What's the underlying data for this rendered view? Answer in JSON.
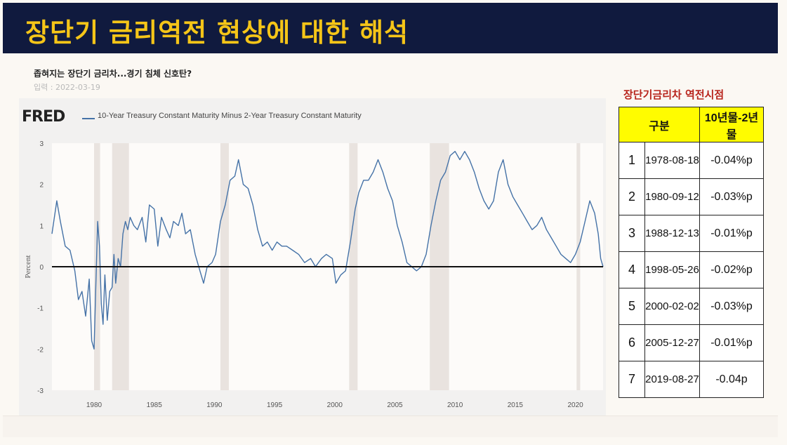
{
  "slide": {
    "title": "장단기 금리역전 현상에 대한 해석",
    "headline": "좁혀지는 장단기 금리차...경기 침체 신호탄?",
    "date_line": "입력 : 2022-03-19"
  },
  "chart_data": {
    "type": "line",
    "logo": "FRED",
    "legend": "10-Year Treasury Constant Maturity Minus 2-Year Treasury Constant Maturity",
    "ylabel": "Percent",
    "xlabel": "",
    "ylim": [
      -3,
      3
    ],
    "xlim": [
      1976.5,
      2022.3
    ],
    "y_ticks": [
      3,
      2,
      1,
      0,
      -1,
      -2,
      -3
    ],
    "x_ticks": [
      1980,
      1985,
      1990,
      1995,
      2000,
      2005,
      2010,
      2015,
      2020
    ],
    "recessions": [
      [
        1980.0,
        1980.5
      ],
      [
        1981.5,
        1982.9
      ],
      [
        1990.5,
        1991.2
      ],
      [
        2001.2,
        2001.9
      ],
      [
        2007.9,
        2009.5
      ],
      [
        2020.1,
        2020.4
      ]
    ],
    "series": [
      {
        "name": "10-Year Treasury Constant Maturity Minus 2-Year Treasury Constant Maturity",
        "color": "#4572a7",
        "x": [
          1976.5,
          1976.9,
          1977.2,
          1977.6,
          1978.0,
          1978.4,
          1978.7,
          1979.0,
          1979.3,
          1979.6,
          1979.8,
          1980.0,
          1980.15,
          1980.3,
          1980.45,
          1980.6,
          1980.75,
          1980.9,
          1981.1,
          1981.3,
          1981.5,
          1981.65,
          1981.8,
          1982.0,
          1982.2,
          1982.4,
          1982.6,
          1982.8,
          1983.0,
          1983.3,
          1983.6,
          1984.0,
          1984.3,
          1984.6,
          1985.0,
          1985.3,
          1985.6,
          1986.0,
          1986.3,
          1986.6,
          1987.0,
          1987.3,
          1987.6,
          1988.0,
          1988.4,
          1988.8,
          1989.1,
          1989.4,
          1989.8,
          1990.1,
          1990.5,
          1990.9,
          1991.3,
          1991.7,
          1992.0,
          1992.4,
          1992.8,
          1993.2,
          1993.6,
          1994.0,
          1994.4,
          1994.8,
          1995.2,
          1995.6,
          1996.0,
          1996.5,
          1997.0,
          1997.5,
          1998.0,
          1998.4,
          1998.9,
          1999.3,
          1999.8,
          2000.1,
          2000.5,
          2000.9,
          2001.3,
          2001.7,
          2002.0,
          2002.4,
          2002.8,
          2003.2,
          2003.6,
          2004.0,
          2004.4,
          2004.8,
          2005.2,
          2005.6,
          2006.0,
          2006.4,
          2006.8,
          2007.2,
          2007.6,
          2008.0,
          2008.4,
          2008.8,
          2009.2,
          2009.6,
          2010.0,
          2010.4,
          2010.8,
          2011.2,
          2011.6,
          2012.0,
          2012.4,
          2012.8,
          2013.2,
          2013.6,
          2014.0,
          2014.4,
          2014.8,
          2015.2,
          2015.6,
          2016.0,
          2016.4,
          2016.8,
          2017.2,
          2017.6,
          2018.0,
          2018.4,
          2018.8,
          2019.2,
          2019.6,
          2020.0,
          2020.4,
          2020.8,
          2021.2,
          2021.6,
          2021.9,
          2022.1,
          2022.3
        ],
        "y": [
          0.8,
          1.6,
          1.1,
          0.5,
          0.4,
          -0.1,
          -0.8,
          -0.6,
          -1.2,
          -0.3,
          -1.8,
          -2.0,
          -0.4,
          1.1,
          0.5,
          -0.9,
          -1.4,
          -0.2,
          -1.3,
          -0.6,
          -0.5,
          0.3,
          -0.4,
          0.2,
          0.0,
          0.8,
          1.1,
          0.9,
          1.2,
          1.0,
          0.9,
          1.2,
          0.6,
          1.5,
          1.4,
          0.5,
          1.2,
          0.9,
          0.7,
          1.1,
          1.0,
          1.3,
          0.8,
          0.9,
          0.3,
          -0.1,
          -0.4,
          0.0,
          0.1,
          0.3,
          1.1,
          1.5,
          2.1,
          2.2,
          2.6,
          2.0,
          1.9,
          1.5,
          0.9,
          0.5,
          0.6,
          0.4,
          0.6,
          0.5,
          0.5,
          0.4,
          0.3,
          0.1,
          0.2,
          0.0,
          0.2,
          0.3,
          0.2,
          -0.4,
          -0.2,
          -0.1,
          0.6,
          1.4,
          1.8,
          2.1,
          2.1,
          2.3,
          2.6,
          2.3,
          1.9,
          1.6,
          1.0,
          0.6,
          0.1,
          0.0,
          -0.1,
          0.0,
          0.3,
          1.0,
          1.6,
          2.1,
          2.3,
          2.7,
          2.8,
          2.6,
          2.8,
          2.6,
          2.3,
          1.9,
          1.6,
          1.4,
          1.6,
          2.3,
          2.6,
          2.0,
          1.7,
          1.5,
          1.3,
          1.1,
          0.9,
          1.0,
          1.2,
          0.9,
          0.7,
          0.5,
          0.3,
          0.2,
          0.1,
          0.3,
          0.6,
          1.1,
          1.6,
          1.3,
          0.8,
          0.2,
          0.0
        ]
      }
    ]
  },
  "side_table": {
    "title": "장단기금리차 역전시점",
    "headers": [
      "구분",
      "10년물-2년물"
    ],
    "rows": [
      {
        "no": "1",
        "date": "1978-08-18",
        "value": "-0.04%p"
      },
      {
        "no": "2",
        "date": "1980-09-12",
        "value": "-0.03%p"
      },
      {
        "no": "3",
        "date": "1988-12-13",
        "value": "-0.01%p"
      },
      {
        "no": "4",
        "date": "1998-05-26",
        "value": "-0.02%p"
      },
      {
        "no": "5",
        "date": "2000-02-02",
        "value": "-0.03%p"
      },
      {
        "no": "6",
        "date": "2005-12-27",
        "value": "-0.01%p"
      },
      {
        "no": "7",
        "date": "2019-08-27",
        "value": "-0.04p"
      }
    ]
  },
  "colors": {
    "title_bg": "#101a3e",
    "title_text": "#f5c518",
    "table_header_bg": "#fffc00",
    "side_title": "#b8241c",
    "series": "#4572a7"
  }
}
